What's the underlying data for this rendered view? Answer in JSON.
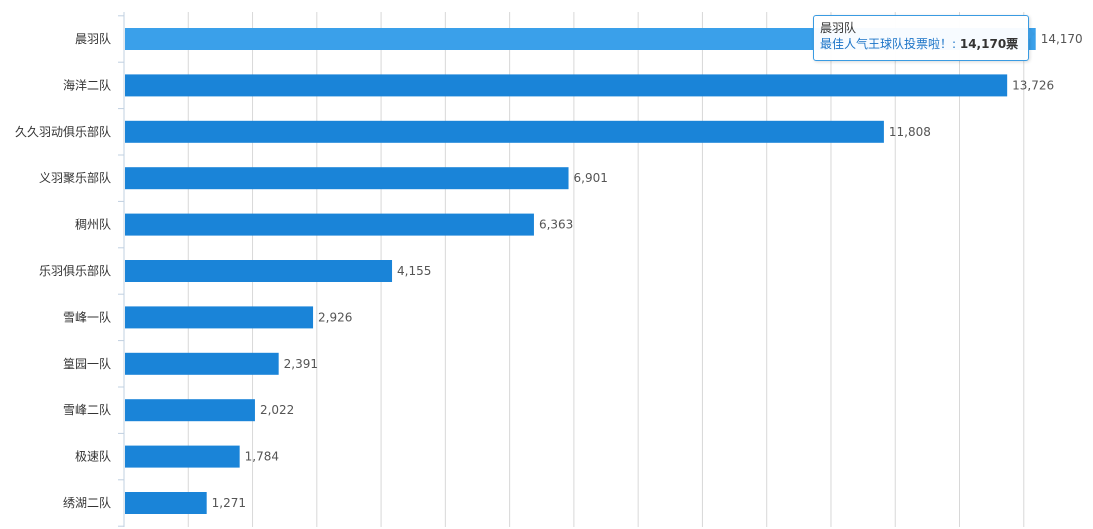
{
  "chart_data": {
    "type": "bar",
    "orientation": "horizontal",
    "categories": [
      "晨羽队",
      "海洋二队",
      "久久羽动俱乐部队",
      "义羽聚乐部队",
      "稠州队",
      "乐羽俱乐部队",
      "雪峰一队",
      "篁园一队",
      "雪峰二队",
      "极速队",
      "绣湖二队"
    ],
    "series": [
      {
        "name": "最佳人气王球队投票啦！",
        "values": [
          14170,
          13726,
          11808,
          6901,
          6363,
          4155,
          2926,
          2391,
          2022,
          1784,
          1271
        ],
        "value_labels": [
          "14,170",
          "13,726",
          "11,808",
          "6,901",
          "6,363",
          "4,155",
          "2,926",
          "2,391",
          "2,022",
          "1,784",
          "1,271"
        ]
      }
    ],
    "xlim": [
      0,
      15000
    ],
    "grid": true,
    "legend": "none",
    "bar_color": "#1a84d8",
    "highlight_color": "#3aa0ea",
    "grid_color": "#d8d8d8",
    "axis_color": "#c0d0e0",
    "highlighted_index": 0
  },
  "tooltip": {
    "title": "晨羽队",
    "series_label": "最佳人气王球队投票啦！: ",
    "value": "14,170票"
  }
}
